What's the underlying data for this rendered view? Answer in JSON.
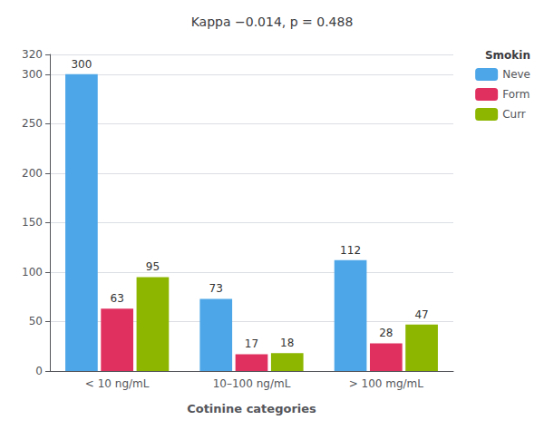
{
  "chart_data": {
    "type": "bar",
    "annotation": "Kappa −0.014, p = 0.488",
    "xlabel": "Cotinine categories",
    "categories": [
      "< 10 ng/mL",
      "10–100 ng/mL",
      "> 100 mg/mL"
    ],
    "series": [
      {
        "name": "Neve",
        "color": "#4DA6E8",
        "values": [
          300,
          73,
          112
        ]
      },
      {
        "name": "Form",
        "color": "#E03060",
        "values": [
          63,
          17,
          28
        ]
      },
      {
        "name": "Curr",
        "color": "#8DB600",
        "values": [
          95,
          18,
          47
        ]
      }
    ],
    "legend_title": "Smokin",
    "legend": "upper right",
    "ylim": [
      0,
      320
    ],
    "yticks": [
      0,
      50,
      100,
      150,
      200,
      250,
      300
    ],
    "grid": true,
    "data_labels": true
  }
}
